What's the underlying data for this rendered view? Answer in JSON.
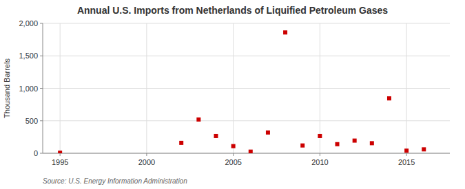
{
  "chart_data": {
    "type": "scatter",
    "title": "Annual U.S. Imports from Netherlands of Liquified Petroleum Gases",
    "ylabel": "Thousand Barrels",
    "source": "Source: U.S. Energy Information Administration",
    "x": [
      1995,
      2002,
      2003,
      2004,
      2005,
      2006,
      2007,
      2008,
      2009,
      2010,
      2011,
      2012,
      2013,
      2014,
      2015,
      2016
    ],
    "values": [
      8,
      160,
      520,
      265,
      110,
      25,
      320,
      1860,
      120,
      265,
      140,
      195,
      155,
      845,
      40,
      60
    ],
    "color": "#cc0000",
    "marker": "square",
    "xlim": [
      1994,
      2017.5
    ],
    "xticks": [
      1995,
      2000,
      2005,
      2010,
      2015
    ],
    "ylim": [
      0,
      2000
    ],
    "yticks": [
      0,
      500,
      {
        "value": 1000,
        "label": "1,000"
      },
      {
        "value": 1500,
        "label": "1,500"
      },
      {
        "value": 2000,
        "label": "2,000"
      }
    ],
    "grid": true
  }
}
